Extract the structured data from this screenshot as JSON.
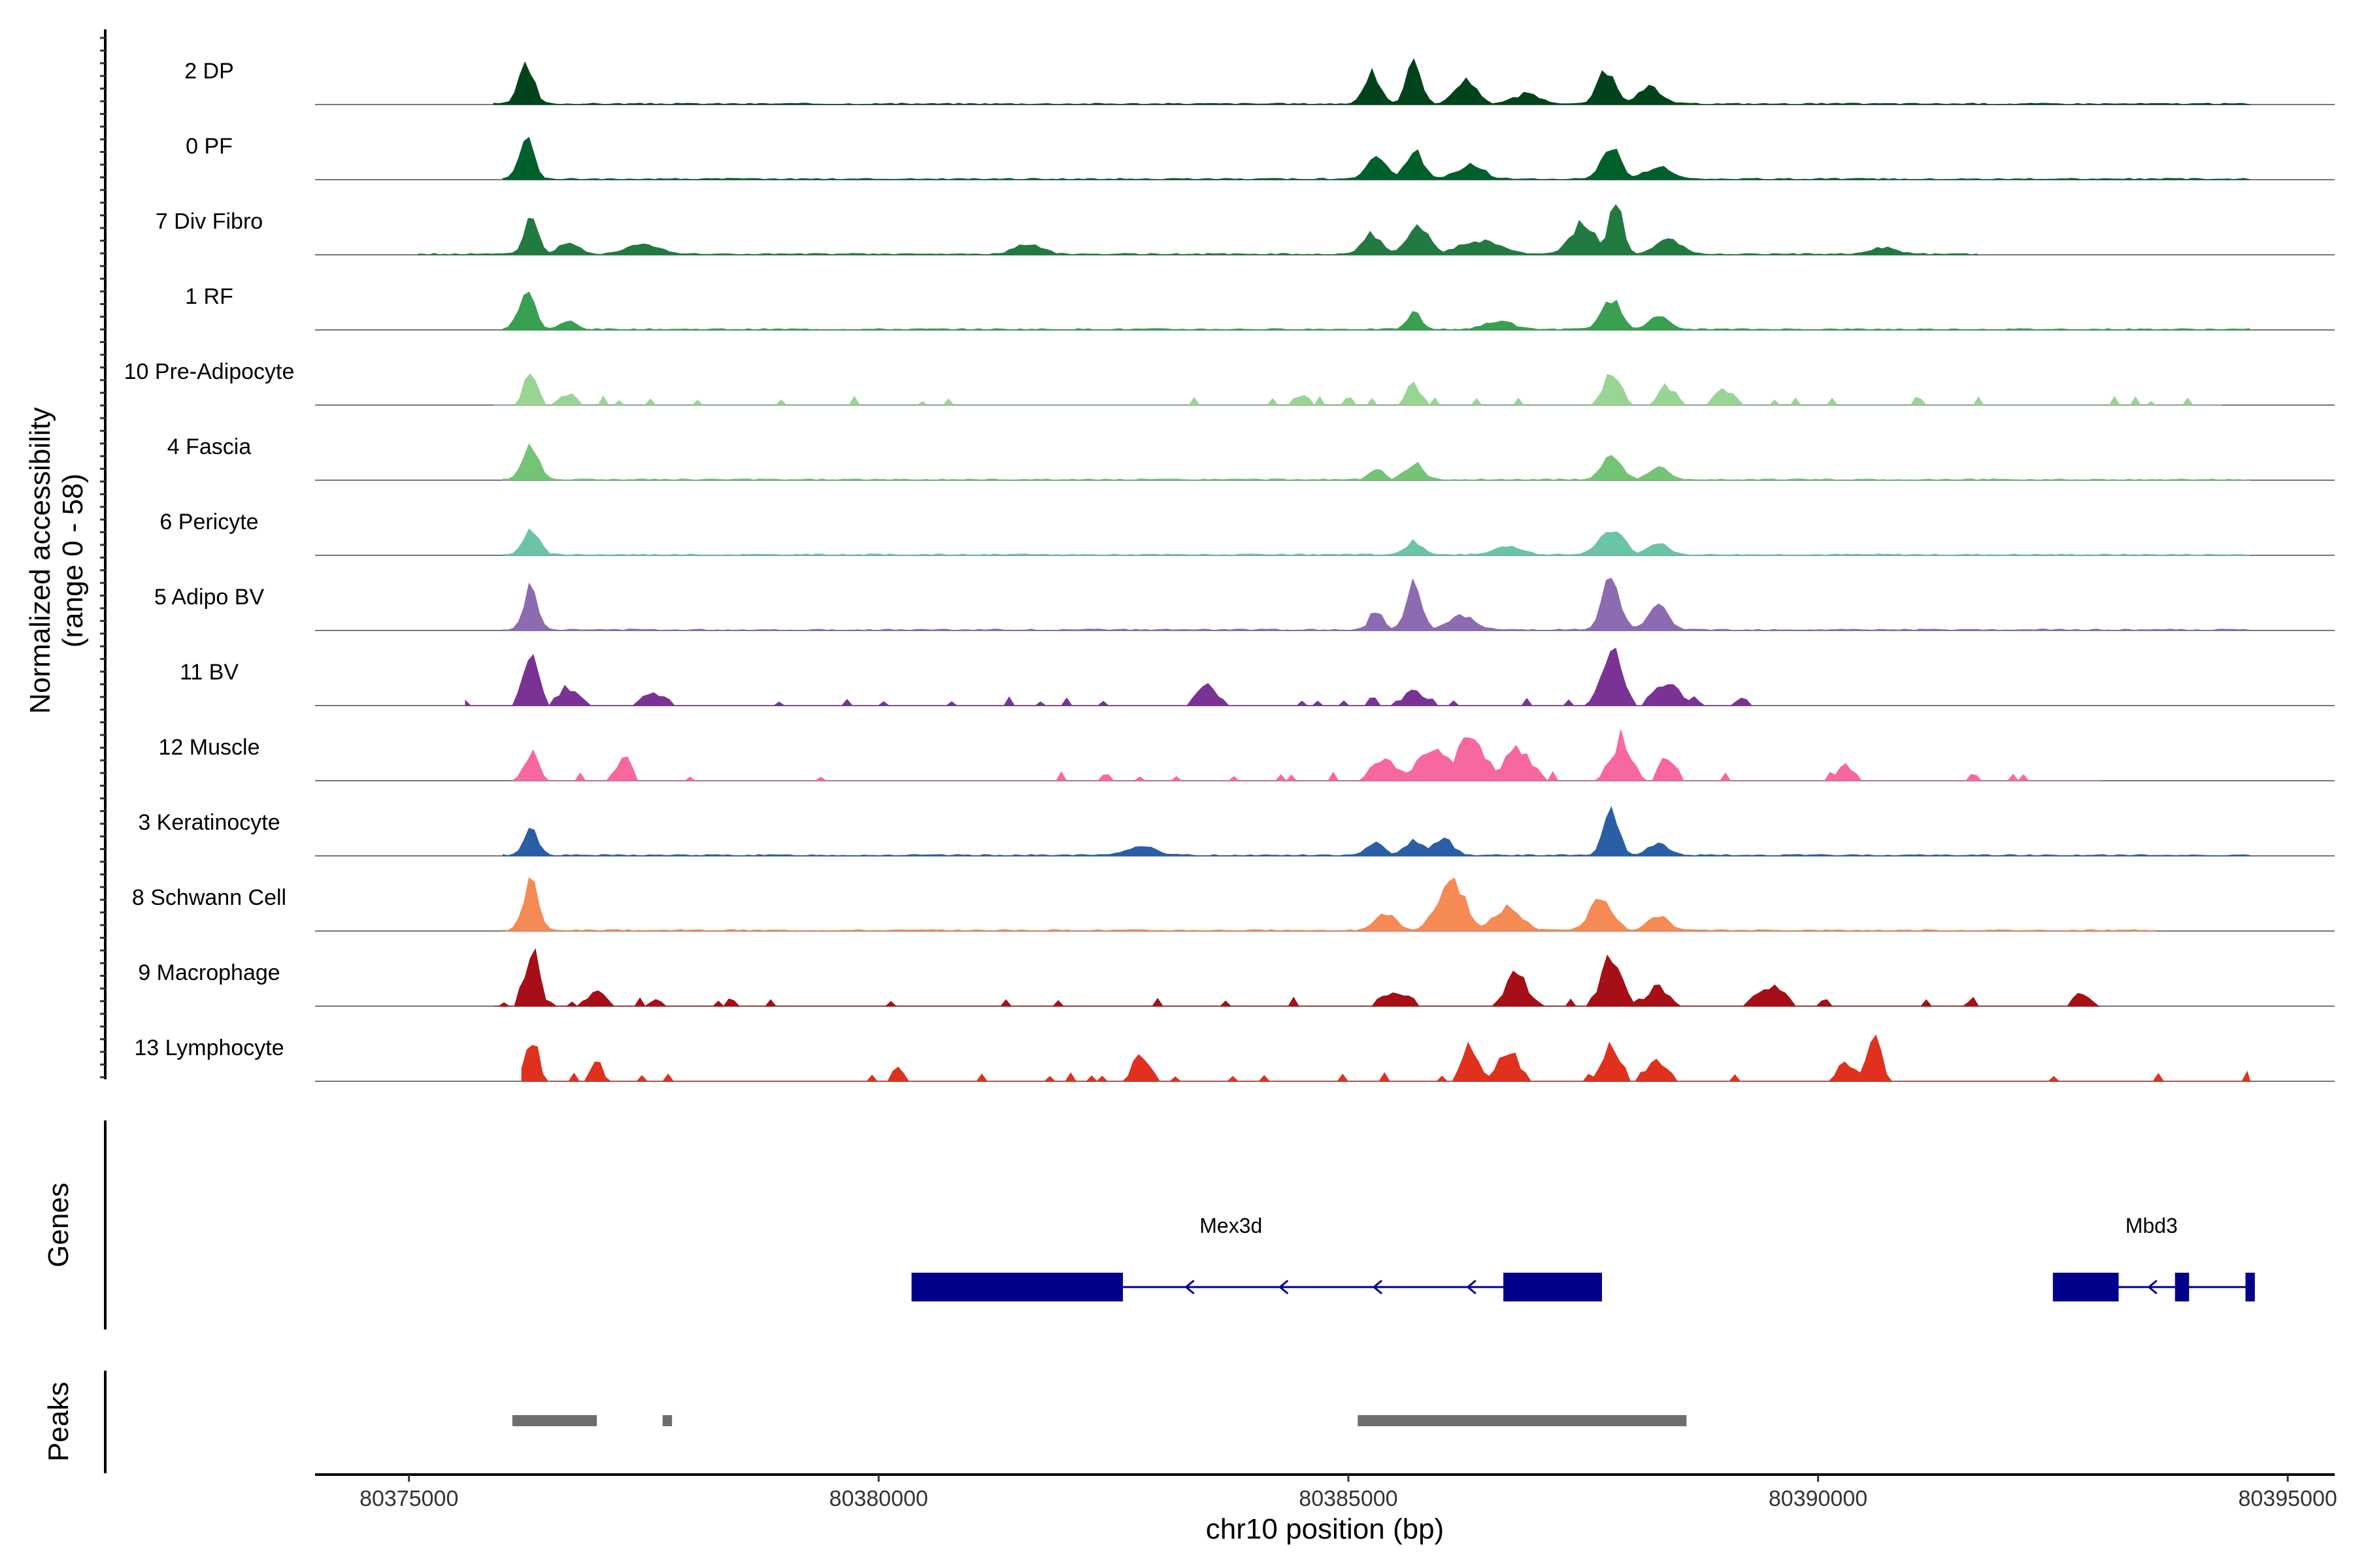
{
  "chart_data": {
    "type": "area",
    "title": "",
    "ylabel_line1": "Normalized accessibility",
    "ylabel_line2": "(range 0 - 58)",
    "yrange": [
      0,
      58
    ],
    "xlabel": "chr10 position (bp)",
    "xlim": [
      80374000,
      80395500
    ],
    "xticks": [
      80375000,
      80380000,
      80385000,
      80390000,
      80395000
    ],
    "xtick_labels": [
      "80375000",
      "80380000",
      "80385000",
      "80390000",
      "80395000"
    ],
    "tracks_label_genes": "Genes",
    "tracks_label_peaks": "Peaks",
    "series": [
      {
        "name": "2 DP",
        "color": "#00441b",
        "style": "continuous",
        "extent": [
          80375900,
          80394600
        ],
        "peaks": [
          [
            80376250,
            0.72,
            110
          ],
          [
            80385250,
            0.55,
            120
          ],
          [
            80385700,
            0.75,
            110
          ],
          [
            80386250,
            0.45,
            150
          ],
          [
            80387750,
            0.6,
            130
          ],
          [
            80388200,
            0.28,
            180
          ],
          [
            80386900,
            0.18,
            200
          ]
        ]
      },
      {
        "name": "0 PF",
        "color": "#00602c",
        "style": "continuous",
        "extent": [
          80376000,
          80394600
        ],
        "peaks": [
          [
            80376250,
            0.72,
            110
          ],
          [
            80385300,
            0.4,
            140
          ],
          [
            80385700,
            0.5,
            130
          ],
          [
            80386300,
            0.25,
            200
          ],
          [
            80387800,
            0.55,
            140
          ],
          [
            80388300,
            0.2,
            200
          ]
        ]
      },
      {
        "name": "7 Div Fibro",
        "color": "#217a40",
        "style": "continuous",
        "extent": [
          80375100,
          80391700
        ],
        "peaks": [
          [
            80376300,
            0.7,
            100
          ],
          [
            80376700,
            0.22,
            140
          ],
          [
            80377500,
            0.18,
            250
          ],
          [
            80381600,
            0.18,
            200
          ],
          [
            80385250,
            0.35,
            140
          ],
          [
            80385750,
            0.5,
            160
          ],
          [
            80386400,
            0.25,
            300
          ],
          [
            80387500,
            0.55,
            180
          ],
          [
            80387850,
            1.0,
            100
          ],
          [
            80388400,
            0.25,
            200
          ],
          [
            80390700,
            0.12,
            200
          ]
        ]
      },
      {
        "name": "1 RF",
        "color": "#38a050",
        "style": "continuous",
        "extent": [
          80376000,
          80394600
        ],
        "peaks": [
          [
            80376250,
            0.65,
            120
          ],
          [
            80376700,
            0.15,
            120
          ],
          [
            80385700,
            0.3,
            100
          ],
          [
            80386600,
            0.15,
            200
          ],
          [
            80387800,
            0.55,
            140
          ],
          [
            80388300,
            0.22,
            150
          ]
        ]
      },
      {
        "name": "10 Pre-Adipocyte",
        "color": "#98d594",
        "style": "sparse",
        "extent": [
          80375900,
          80394300
        ],
        "peaks": [
          [
            80376300,
            0.55,
            110
          ],
          [
            80376700,
            0.2,
            150
          ],
          [
            80385700,
            0.38,
            110
          ],
          [
            80387800,
            0.55,
            140
          ],
          [
            80388400,
            0.35,
            130
          ],
          [
            80389000,
            0.25,
            150
          ],
          [
            80384500,
            0.15,
            150
          ]
        ]
      },
      {
        "name": "4 Fascia",
        "color": "#74c476",
        "style": "continuous",
        "extent": [
          80376000,
          80394600
        ],
        "peaks": [
          [
            80376300,
            0.6,
            120
          ],
          [
            80385300,
            0.2,
            100
          ],
          [
            80385700,
            0.28,
            130
          ],
          [
            80387800,
            0.4,
            150
          ],
          [
            80388300,
            0.2,
            150
          ]
        ]
      },
      {
        "name": "6 Pericyte",
        "color": "#6bc4a8",
        "style": "continuous",
        "extent": [
          80376000,
          80394600
        ],
        "peaks": [
          [
            80376300,
            0.42,
            120
          ],
          [
            80385700,
            0.25,
            120
          ],
          [
            80386700,
            0.15,
            200
          ],
          [
            80387800,
            0.45,
            180
          ],
          [
            80388300,
            0.2,
            150
          ]
        ]
      },
      {
        "name": "5 Adipo BV",
        "color": "#8c6bb1",
        "style": "continuous",
        "extent": [
          80376000,
          80394600
        ],
        "peaks": [
          [
            80376300,
            0.78,
            100
          ],
          [
            80385300,
            0.35,
            100
          ],
          [
            80385700,
            0.95,
            110
          ],
          [
            80386200,
            0.25,
            200
          ],
          [
            80387800,
            0.9,
            130
          ],
          [
            80388300,
            0.4,
            150
          ]
        ]
      },
      {
        "name": "11 BV",
        "color": "#7a3394",
        "style": "sparse",
        "extent": [
          80375600,
          80389300
        ],
        "peaks": [
          [
            80376300,
            1.0,
            110
          ],
          [
            80376700,
            0.35,
            150
          ],
          [
            80377600,
            0.2,
            200
          ],
          [
            80383500,
            0.35,
            150
          ],
          [
            80385700,
            0.25,
            150
          ],
          [
            80387800,
            1.0,
            150
          ],
          [
            80388400,
            0.4,
            200
          ],
          [
            80389200,
            0.15,
            100
          ]
        ]
      },
      {
        "name": "12 Muscle",
        "color": "#f768a1",
        "style": "sparse",
        "extent": [
          80376100,
          80393000
        ],
        "peaks": [
          [
            80376300,
            0.5,
            110
          ],
          [
            80377300,
            0.4,
            100
          ],
          [
            80385400,
            0.4,
            200
          ],
          [
            80385900,
            0.7,
            200
          ],
          [
            80386300,
            0.9,
            200
          ],
          [
            80386800,
            0.6,
            200
          ],
          [
            80387900,
            0.75,
            150
          ],
          [
            80388400,
            0.45,
            120
          ],
          [
            80390300,
            0.25,
            150
          ]
        ]
      },
      {
        "name": "3 Keratinocyte",
        "color": "#2a5fa6",
        "style": "continuous",
        "extent": [
          80376000,
          80394600
        ],
        "peaks": [
          [
            80376300,
            0.45,
            110
          ],
          [
            80385300,
            0.25,
            120
          ],
          [
            80385700,
            0.28,
            130
          ],
          [
            80386000,
            0.3,
            150
          ],
          [
            80387800,
            0.8,
            110
          ],
          [
            80388300,
            0.2,
            150
          ],
          [
            80382800,
            0.18,
            200
          ]
        ]
      },
      {
        "name": "8 Schwann Cell",
        "color": "#f58a55",
        "style": "continuous",
        "extent": [
          80376000,
          80393600
        ],
        "peaks": [
          [
            80376300,
            0.85,
            110
          ],
          [
            80385400,
            0.3,
            150
          ],
          [
            80386100,
            0.9,
            200
          ],
          [
            80386700,
            0.4,
            200
          ],
          [
            80387700,
            0.6,
            160
          ],
          [
            80388300,
            0.25,
            150
          ]
        ]
      },
      {
        "name": "9 Macrophage",
        "color": "#a50f15",
        "style": "sparse",
        "extent": [
          80375900,
          80393000
        ],
        "peaks": [
          [
            80376300,
            1.0,
            110
          ],
          [
            80377000,
            0.25,
            150
          ],
          [
            80385500,
            0.3,
            200
          ],
          [
            80386800,
            0.6,
            150
          ],
          [
            80387800,
            0.95,
            150
          ],
          [
            80388300,
            0.35,
            150
          ],
          [
            80389500,
            0.4,
            200
          ],
          [
            80392800,
            0.2,
            150
          ]
        ]
      },
      {
        "name": "13 Lymphocyte",
        "color": "#e0301e",
        "style": "sparse",
        "extent": [
          80376200,
          80394600
        ],
        "peaks": [
          [
            80376300,
            0.8,
            100
          ],
          [
            80377000,
            0.35,
            80
          ],
          [
            80380200,
            0.3,
            80
          ],
          [
            80382800,
            0.55,
            120
          ],
          [
            80386300,
            0.6,
            120
          ],
          [
            80386700,
            0.65,
            150
          ],
          [
            80387800,
            0.7,
            130
          ],
          [
            80388300,
            0.35,
            150
          ],
          [
            80390300,
            0.35,
            120
          ],
          [
            80390600,
            0.75,
            100
          ],
          [
            80394600,
            0.2,
            60
          ]
        ]
      }
    ],
    "genes": [
      {
        "name": "Mex3d",
        "strand": "-",
        "start": 80380350,
        "end": 80387700,
        "exons": [
          [
            80380350,
            80382600
          ],
          [
            80386650,
            80387700
          ]
        ],
        "arrows": [
          80383300,
          80384300,
          80385300,
          80386300
        ]
      },
      {
        "name": "Mbd3",
        "strand": "-",
        "start": 80392500,
        "end": 80394650,
        "exons": [
          [
            80392500,
            80393200
          ],
          [
            80393800,
            80393950
          ],
          [
            80394550,
            80394650
          ]
        ],
        "arrows": [
          80393550
        ]
      }
    ],
    "peaks_track": [
      [
        80376100,
        80377000
      ],
      [
        80377700,
        80377800
      ],
      [
        80385100,
        80388600
      ]
    ],
    "peak_color": "#6e6e6e",
    "gene_color": "#00008b"
  }
}
